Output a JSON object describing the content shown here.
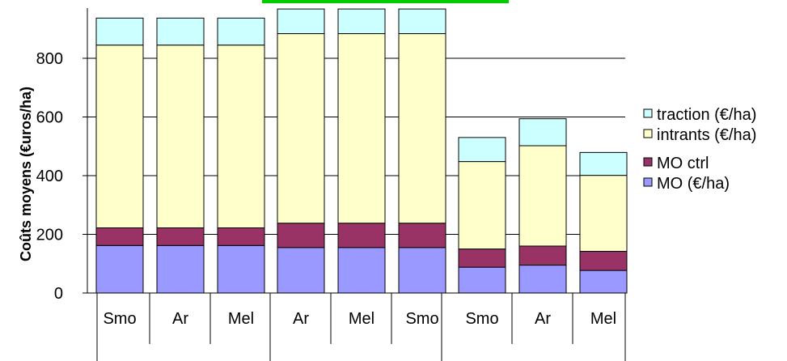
{
  "chart_data": {
    "type": "bar",
    "stacked": true,
    "categories": [
      "Smo",
      "Ar",
      "Mel",
      "Ar",
      "Mel",
      "Smo",
      "Smo",
      "Ar",
      "Mel"
    ],
    "series": [
      {
        "name": "MO (€/ha)",
        "color": "#9999ff",
        "values": [
          162,
          162,
          162,
          155,
          155,
          155,
          88,
          95,
          77
        ]
      },
      {
        "name": "MO ctrl",
        "color": "#993366",
        "values": [
          60,
          60,
          60,
          83,
          83,
          83,
          62,
          65,
          65
        ]
      },
      {
        "name": "intrants (€/ha)",
        "color": "#ffffcc",
        "values": [
          623,
          623,
          623,
          646,
          646,
          646,
          298,
          342,
          259
        ]
      },
      {
        "name": "traction (€/ha)",
        "color": "#ccffff",
        "values": [
          92,
          92,
          92,
          84,
          84,
          84,
          82,
          92,
          78
        ]
      }
    ],
    "ylabel": "Coûts moyens (€uros/ha)",
    "xlabel": "",
    "ylim": [
      0,
      1000
    ],
    "yticks": [
      0,
      200,
      400,
      600,
      800
    ],
    "grid": true,
    "legend_position": "right",
    "legend_order": [
      "traction (€/ha)",
      "intrants (€/ha)",
      "MO ctrl",
      "MO (€/ha)"
    ]
  },
  "top_bar_color": "#00cc00"
}
